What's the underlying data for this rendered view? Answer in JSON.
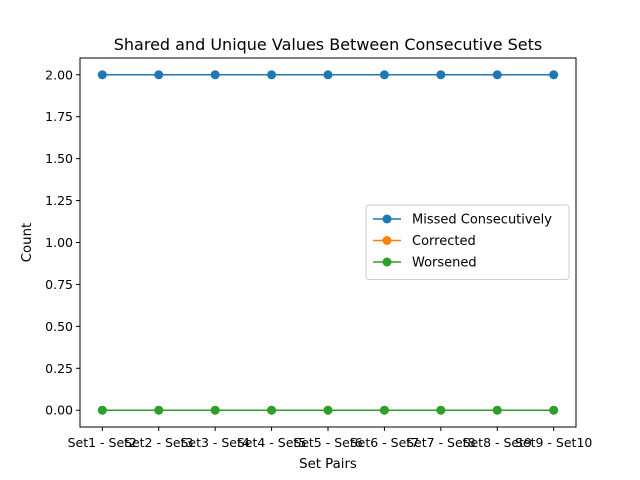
{
  "chart_data": {
    "type": "line",
    "title": "Shared and Unique Values Between Consecutive Sets",
    "xlabel": "Set Pairs",
    "ylabel": "Count",
    "categories": [
      "Set1 - Set2",
      "Set2 - Set3",
      "Set3 - Set4",
      "Set4 - Set5",
      "Set5 - Set6",
      "Set6 - Set7",
      "Set7 - Set8",
      "Set8 - Set9",
      "Set9 - Set10"
    ],
    "series": [
      {
        "name": "Missed Consecutively",
        "color": "#1f77b4",
        "values": [
          2,
          2,
          2,
          2,
          2,
          2,
          2,
          2,
          2
        ]
      },
      {
        "name": "Corrected",
        "color": "#ff7f0e",
        "values": [
          0,
          0,
          0,
          0,
          0,
          0,
          0,
          0,
          0
        ]
      },
      {
        "name": "Worsened",
        "color": "#2ca02c",
        "values": [
          0,
          0,
          0,
          0,
          0,
          0,
          0,
          0,
          0
        ]
      }
    ],
    "yticks": [
      "0.00",
      "0.25",
      "0.50",
      "0.75",
      "1.00",
      "1.25",
      "1.50",
      "1.75",
      "2.00"
    ],
    "ylim": [
      -0.1,
      2.1
    ],
    "grid": false,
    "legend_position": "center-right"
  }
}
